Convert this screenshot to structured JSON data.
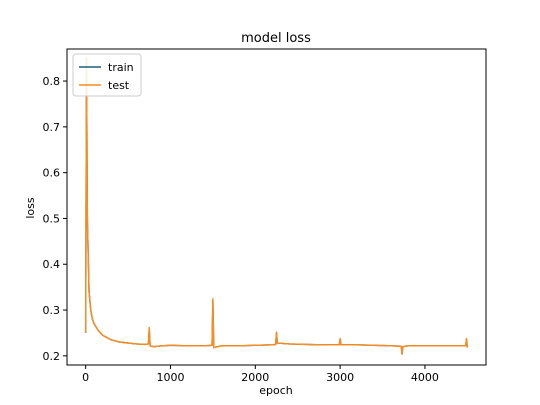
{
  "chart_data": {
    "type": "line",
    "title": "model loss",
    "xlabel": "epoch",
    "ylabel": "loss",
    "xlim": [
      -220,
      4720
    ],
    "ylim": [
      0.18,
      0.87
    ],
    "x_ticks": [
      0,
      1000,
      2000,
      3000,
      4000
    ],
    "x_tick_labels": [
      "0",
      "1000",
      "2000",
      "3000",
      "4000"
    ],
    "y_ticks": [
      0.2,
      0.3,
      0.4,
      0.5,
      0.6,
      0.7,
      0.8
    ],
    "y_tick_labels": [
      "0.2",
      "0.3",
      "0.4",
      "0.5",
      "0.6",
      "0.7",
      "0.8"
    ],
    "grid": false,
    "legend_position": "upper left",
    "series": [
      {
        "name": "train",
        "color": "#1f5f7a",
        "x": [
          0,
          10,
          20,
          40,
          60,
          80,
          100,
          150,
          200,
          300,
          400,
          500,
          600,
          700,
          740,
          750,
          760,
          800,
          900,
          1000,
          1200,
          1400,
          1490,
          1500,
          1510,
          1600,
          1800,
          2000,
          2200,
          2240,
          2250,
          2260,
          2400,
          2600,
          2800,
          2990,
          3000,
          3010,
          3200,
          3400,
          3600,
          3720,
          3730,
          3740,
          3800,
          4000,
          4200,
          4400,
          4480,
          4490,
          4500
        ],
        "values": [
          0.25,
          0.85,
          0.5,
          0.34,
          0.3,
          0.28,
          0.27,
          0.255,
          0.245,
          0.235,
          0.23,
          0.228,
          0.226,
          0.225,
          0.226,
          0.26,
          0.222,
          0.22,
          0.222,
          0.223,
          0.222,
          0.222,
          0.223,
          0.32,
          0.218,
          0.222,
          0.222,
          0.223,
          0.224,
          0.225,
          0.25,
          0.228,
          0.226,
          0.225,
          0.224,
          0.224,
          0.236,
          0.224,
          0.224,
          0.223,
          0.222,
          0.221,
          0.205,
          0.22,
          0.222,
          0.222,
          0.222,
          0.222,
          0.222,
          0.236,
          0.218
        ]
      },
      {
        "name": "test",
        "color": "#ff8c1a",
        "x": [
          0,
          10,
          20,
          40,
          60,
          80,
          100,
          150,
          200,
          300,
          400,
          500,
          600,
          700,
          740,
          750,
          760,
          800,
          900,
          1000,
          1200,
          1400,
          1490,
          1500,
          1510,
          1600,
          1800,
          2000,
          2200,
          2240,
          2250,
          2260,
          2400,
          2600,
          2800,
          2990,
          3000,
          3010,
          3200,
          3400,
          3600,
          3720,
          3730,
          3740,
          3800,
          4000,
          4200,
          4400,
          4480,
          4490,
          4500
        ],
        "values": [
          0.25,
          0.85,
          0.5,
          0.34,
          0.3,
          0.28,
          0.27,
          0.255,
          0.245,
          0.235,
          0.23,
          0.228,
          0.226,
          0.225,
          0.226,
          0.262,
          0.222,
          0.22,
          0.222,
          0.223,
          0.222,
          0.222,
          0.223,
          0.325,
          0.218,
          0.222,
          0.222,
          0.223,
          0.224,
          0.225,
          0.252,
          0.228,
          0.226,
          0.225,
          0.224,
          0.224,
          0.238,
          0.224,
          0.224,
          0.223,
          0.222,
          0.221,
          0.203,
          0.22,
          0.222,
          0.222,
          0.222,
          0.222,
          0.222,
          0.238,
          0.218
        ]
      }
    ]
  }
}
